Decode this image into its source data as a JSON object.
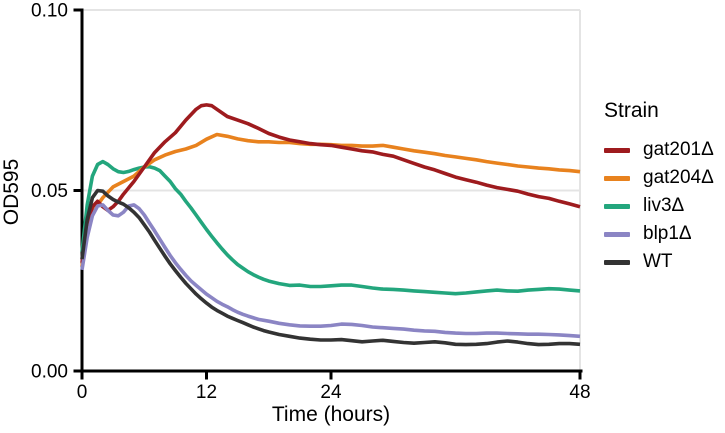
{
  "chart_data": {
    "type": "line",
    "title": "",
    "xlabel": "Time (hours)",
    "ylabel": "OD595",
    "xlim": [
      0,
      48
    ],
    "ylim": [
      0,
      0.1
    ],
    "x_ticks": {
      "values": [
        0,
        12,
        24,
        48
      ],
      "labels": [
        "0",
        "12",
        "24",
        "48"
      ]
    },
    "y_ticks": {
      "values": [
        0,
        0.05,
        0.1
      ],
      "labels": [
        "0.00",
        "0.05",
        "0.10"
      ]
    },
    "grid": {
      "color": "#E4E4E4",
      "y_values": [
        0.05,
        0.1
      ],
      "x_values": [
        48
      ]
    },
    "legend": {
      "title": "Strain",
      "position": "right"
    },
    "axis_color": "#000000",
    "draw_order": [
      2,
      1,
      0,
      3,
      4
    ],
    "series": [
      {
        "name": "gat201Δ",
        "color": "#9E1B1E",
        "points": [
          [
            0,
            0.03
          ],
          [
            0.5,
            0.04
          ],
          [
            1,
            0.0455
          ],
          [
            1.5,
            0.047
          ],
          [
            2,
            0.0455
          ],
          [
            2.5,
            0.0445
          ],
          [
            3,
            0.0455
          ],
          [
            3.5,
            0.047
          ],
          [
            4,
            0.049
          ],
          [
            5,
            0.0525
          ],
          [
            6,
            0.0565
          ],
          [
            7,
            0.0605
          ],
          [
            8,
            0.0635
          ],
          [
            9,
            0.066
          ],
          [
            10,
            0.0695
          ],
          [
            11,
            0.0725
          ],
          [
            11.5,
            0.0735
          ],
          [
            12,
            0.0737
          ],
          [
            12.5,
            0.0735
          ],
          [
            13,
            0.0725
          ],
          [
            14,
            0.0705
          ],
          [
            15,
            0.0695
          ],
          [
            16,
            0.0685
          ],
          [
            17,
            0.0672
          ],
          [
            18,
            0.0658
          ],
          [
            19,
            0.0648
          ],
          [
            20,
            0.064
          ],
          [
            21,
            0.0635
          ],
          [
            22,
            0.063
          ],
          [
            23,
            0.0627
          ],
          [
            24,
            0.0625
          ],
          [
            25,
            0.062
          ],
          [
            26,
            0.0615
          ],
          [
            27,
            0.061
          ],
          [
            28,
            0.0607
          ],
          [
            29,
            0.06
          ],
          [
            30,
            0.0595
          ],
          [
            31,
            0.0585
          ],
          [
            32,
            0.0575
          ],
          [
            33,
            0.0565
          ],
          [
            34,
            0.0557
          ],
          [
            35,
            0.0547
          ],
          [
            36,
            0.0537
          ],
          [
            37,
            0.053
          ],
          [
            38,
            0.0523
          ],
          [
            39,
            0.0515
          ],
          [
            40,
            0.0508
          ],
          [
            41,
            0.0503
          ],
          [
            42,
            0.0498
          ],
          [
            43,
            0.049
          ],
          [
            44,
            0.0483
          ],
          [
            45,
            0.0478
          ],
          [
            46,
            0.047
          ],
          [
            47,
            0.0463
          ],
          [
            48,
            0.0455
          ]
        ]
      },
      {
        "name": "gat204Δ",
        "color": "#E8821E",
        "points": [
          [
            0,
            0.029
          ],
          [
            0.5,
            0.038
          ],
          [
            1,
            0.0435
          ],
          [
            1.5,
            0.046
          ],
          [
            2,
            0.048
          ],
          [
            2.5,
            0.0495
          ],
          [
            3,
            0.051
          ],
          [
            4,
            0.0525
          ],
          [
            5,
            0.054
          ],
          [
            6,
            0.0565
          ],
          [
            7,
            0.0585
          ],
          [
            8,
            0.0598
          ],
          [
            9,
            0.0608
          ],
          [
            10,
            0.0615
          ],
          [
            11,
            0.0625
          ],
          [
            12,
            0.0642
          ],
          [
            13,
            0.0655
          ],
          [
            14,
            0.065
          ],
          [
            15,
            0.0643
          ],
          [
            16,
            0.0638
          ],
          [
            17,
            0.0635
          ],
          [
            18,
            0.0635
          ],
          [
            19,
            0.0633
          ],
          [
            20,
            0.0633
          ],
          [
            21,
            0.063
          ],
          [
            22,
            0.0628
          ],
          [
            23,
            0.0628
          ],
          [
            24,
            0.0627
          ],
          [
            25,
            0.0625
          ],
          [
            26,
            0.0625
          ],
          [
            27,
            0.0623
          ],
          [
            28,
            0.0623
          ],
          [
            29,
            0.0625
          ],
          [
            30,
            0.062
          ],
          [
            31,
            0.0615
          ],
          [
            32,
            0.061
          ],
          [
            33,
            0.0606
          ],
          [
            34,
            0.0602
          ],
          [
            35,
            0.0597
          ],
          [
            36,
            0.0593
          ],
          [
            37,
            0.0589
          ],
          [
            38,
            0.0585
          ],
          [
            39,
            0.058
          ],
          [
            40,
            0.0576
          ],
          [
            41,
            0.0572
          ],
          [
            42,
            0.0568
          ],
          [
            43,
            0.0565
          ],
          [
            44,
            0.0562
          ],
          [
            45,
            0.056
          ],
          [
            46,
            0.0557
          ],
          [
            47,
            0.0555
          ],
          [
            48,
            0.0552
          ]
        ]
      },
      {
        "name": "liv3Δ",
        "color": "#23A67D",
        "points": [
          [
            0,
            0.033
          ],
          [
            0.5,
            0.046
          ],
          [
            1,
            0.054
          ],
          [
            1.5,
            0.0572
          ],
          [
            2,
            0.058
          ],
          [
            2.5,
            0.0572
          ],
          [
            3,
            0.056
          ],
          [
            3.5,
            0.0552
          ],
          [
            4,
            0.055
          ],
          [
            4.5,
            0.0553
          ],
          [
            5,
            0.0558
          ],
          [
            5.5,
            0.0562
          ],
          [
            6,
            0.0565
          ],
          [
            6.5,
            0.0566
          ],
          [
            7,
            0.0562
          ],
          [
            7.5,
            0.0555
          ],
          [
            8,
            0.054
          ],
          [
            8.5,
            0.0525
          ],
          [
            9,
            0.0505
          ],
          [
            9.5,
            0.049
          ],
          [
            10,
            0.047
          ],
          [
            10.5,
            0.0452
          ],
          [
            11,
            0.0432
          ],
          [
            11.5,
            0.0412
          ],
          [
            12,
            0.0392
          ],
          [
            12.5,
            0.0373
          ],
          [
            13,
            0.0355
          ],
          [
            13.5,
            0.0338
          ],
          [
            14,
            0.0322
          ],
          [
            14.5,
            0.0308
          ],
          [
            15,
            0.0295
          ],
          [
            15.5,
            0.0285
          ],
          [
            16,
            0.0275
          ],
          [
            16.5,
            0.0267
          ],
          [
            17,
            0.026
          ],
          [
            17.5,
            0.0254
          ],
          [
            18,
            0.0249
          ],
          [
            19,
            0.0242
          ],
          [
            20,
            0.0237
          ],
          [
            21,
            0.0238
          ],
          [
            22,
            0.0234
          ],
          [
            23,
            0.0234
          ],
          [
            24,
            0.0236
          ],
          [
            25,
            0.0238
          ],
          [
            26,
            0.0238
          ],
          [
            27,
            0.0234
          ],
          [
            28,
            0.023
          ],
          [
            29,
            0.0227
          ],
          [
            30,
            0.0226
          ],
          [
            31,
            0.0224
          ],
          [
            32,
            0.0222
          ],
          [
            33,
            0.022
          ],
          [
            34,
            0.0218
          ],
          [
            35,
            0.0216
          ],
          [
            36,
            0.0214
          ],
          [
            37,
            0.0216
          ],
          [
            38,
            0.0219
          ],
          [
            39,
            0.0222
          ],
          [
            40,
            0.0224
          ],
          [
            41,
            0.0222
          ],
          [
            42,
            0.0221
          ],
          [
            43,
            0.0224
          ],
          [
            44,
            0.0226
          ],
          [
            45,
            0.0228
          ],
          [
            46,
            0.0227
          ],
          [
            47,
            0.0224
          ],
          [
            48,
            0.0222
          ]
        ]
      },
      {
        "name": "blp1Δ",
        "color": "#8B85C4",
        "points": [
          [
            0,
            0.028
          ],
          [
            0.5,
            0.037
          ],
          [
            1,
            0.043
          ],
          [
            1.5,
            0.0457
          ],
          [
            2,
            0.046
          ],
          [
            2.5,
            0.0445
          ],
          [
            3,
            0.0432
          ],
          [
            3.5,
            0.043
          ],
          [
            4,
            0.044
          ],
          [
            4.5,
            0.0457
          ],
          [
            5,
            0.046
          ],
          [
            5.5,
            0.045
          ],
          [
            6,
            0.0432
          ],
          [
            6.5,
            0.041
          ],
          [
            7,
            0.0388
          ],
          [
            7.5,
            0.0365
          ],
          [
            8,
            0.0342
          ],
          [
            8.5,
            0.032
          ],
          [
            9,
            0.03
          ],
          [
            9.5,
            0.0282
          ],
          [
            10,
            0.0265
          ],
          [
            10.5,
            0.025
          ],
          [
            11,
            0.0237
          ],
          [
            11.5,
            0.0225
          ],
          [
            12,
            0.0213
          ],
          [
            12.5,
            0.0203
          ],
          [
            13,
            0.0193
          ],
          [
            13.5,
            0.0185
          ],
          [
            14,
            0.0178
          ],
          [
            14.5,
            0.017
          ],
          [
            15,
            0.0163
          ],
          [
            15.5,
            0.0157
          ],
          [
            16,
            0.0152
          ],
          [
            17,
            0.0143
          ],
          [
            18,
            0.0138
          ],
          [
            19,
            0.0132
          ],
          [
            20,
            0.0128
          ],
          [
            21,
            0.0125
          ],
          [
            22,
            0.0124
          ],
          [
            23,
            0.0124
          ],
          [
            24,
            0.0126
          ],
          [
            25,
            0.013
          ],
          [
            26,
            0.0129
          ],
          [
            27,
            0.0126
          ],
          [
            28,
            0.0122
          ],
          [
            29,
            0.012
          ],
          [
            30,
            0.0118
          ],
          [
            31,
            0.0116
          ],
          [
            32,
            0.0113
          ],
          [
            33,
            0.0111
          ],
          [
            34,
            0.011
          ],
          [
            35,
            0.0107
          ],
          [
            36,
            0.0105
          ],
          [
            37,
            0.0104
          ],
          [
            38,
            0.0104
          ],
          [
            39,
            0.0105
          ],
          [
            40,
            0.0105
          ],
          [
            41,
            0.0104
          ],
          [
            42,
            0.0103
          ],
          [
            43,
            0.0102
          ],
          [
            44,
            0.0102
          ],
          [
            45,
            0.0101
          ],
          [
            46,
            0.01
          ],
          [
            47,
            0.0098
          ],
          [
            48,
            0.0096
          ]
        ]
      },
      {
        "name": "WT",
        "color": "#333333",
        "points": [
          [
            0,
            0.031
          ],
          [
            0.5,
            0.042
          ],
          [
            1,
            0.048
          ],
          [
            1.5,
            0.05
          ],
          [
            2,
            0.0498
          ],
          [
            2.5,
            0.0485
          ],
          [
            3,
            0.0475
          ],
          [
            3.5,
            0.0468
          ],
          [
            4,
            0.0462
          ],
          [
            4.5,
            0.0452
          ],
          [
            5,
            0.044
          ],
          [
            5.5,
            0.0425
          ],
          [
            6,
            0.0405
          ],
          [
            6.5,
            0.0385
          ],
          [
            7,
            0.0362
          ],
          [
            7.5,
            0.034
          ],
          [
            8,
            0.0318
          ],
          [
            8.5,
            0.0297
          ],
          [
            9,
            0.0278
          ],
          [
            9.5,
            0.026
          ],
          [
            10,
            0.0243
          ],
          [
            10.5,
            0.0228
          ],
          [
            11,
            0.0213
          ],
          [
            11.5,
            0.02
          ],
          [
            12,
            0.0188
          ],
          [
            12.5,
            0.0177
          ],
          [
            13,
            0.0168
          ],
          [
            13.5,
            0.016
          ],
          [
            14,
            0.0152
          ],
          [
            14.5,
            0.0146
          ],
          [
            15,
            0.014
          ],
          [
            15.5,
            0.0134
          ],
          [
            16,
            0.0128
          ],
          [
            16.5,
            0.0122
          ],
          [
            17,
            0.0117
          ],
          [
            17.5,
            0.0112
          ],
          [
            18,
            0.0108
          ],
          [
            19,
            0.0101
          ],
          [
            20,
            0.0096
          ],
          [
            21,
            0.0091
          ],
          [
            22,
            0.0088
          ],
          [
            23,
            0.0086
          ],
          [
            24,
            0.0086
          ],
          [
            25,
            0.0087
          ],
          [
            26,
            0.0084
          ],
          [
            27,
            0.0081
          ],
          [
            28,
            0.0083
          ],
          [
            29,
            0.0085
          ],
          [
            30,
            0.0082
          ],
          [
            31,
            0.0079
          ],
          [
            32,
            0.0077
          ],
          [
            33,
            0.0079
          ],
          [
            34,
            0.0081
          ],
          [
            35,
            0.0078
          ],
          [
            36,
            0.0074
          ],
          [
            37,
            0.0073
          ],
          [
            38,
            0.0074
          ],
          [
            39,
            0.0076
          ],
          [
            40,
            0.008
          ],
          [
            41,
            0.0083
          ],
          [
            42,
            0.008
          ],
          [
            43,
            0.0076
          ],
          [
            44,
            0.0073
          ],
          [
            45,
            0.0074
          ],
          [
            46,
            0.0076
          ],
          [
            47,
            0.0076
          ],
          [
            48,
            0.0074
          ]
        ]
      }
    ]
  }
}
